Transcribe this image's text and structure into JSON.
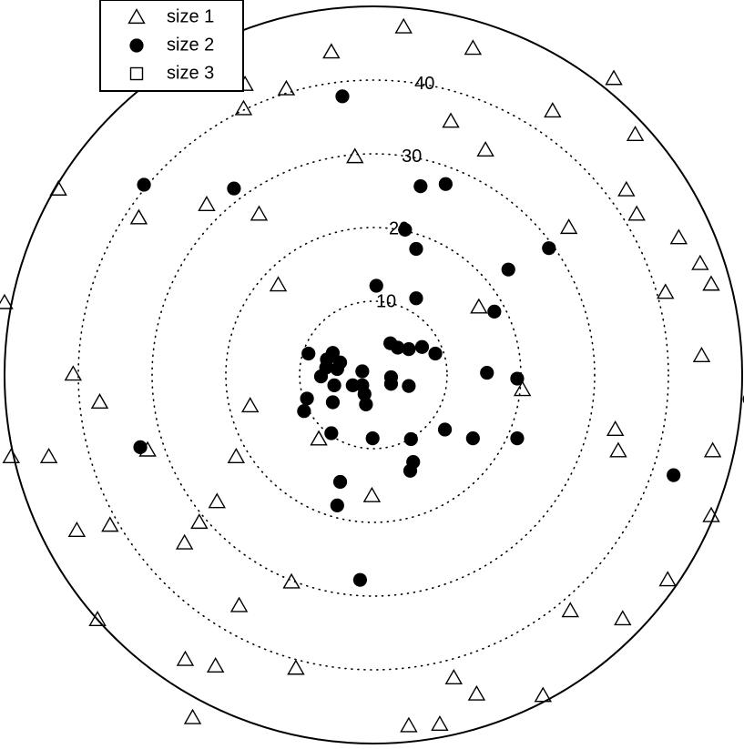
{
  "chart_data": {
    "type": "scatter",
    "coordinate_system": "polar",
    "radial_ticks": [
      {
        "value": 10,
        "label": "10"
      },
      {
        "value": 20,
        "label": "20"
      },
      {
        "value": 30,
        "label": "30"
      },
      {
        "value": 40,
        "label": "40"
      }
    ],
    "rlim": [
      0,
      50
    ],
    "grid": true,
    "legend_position": "top-left",
    "series": [
      {
        "name": "size 1",
        "marker": "open-triangle",
        "points": [
          [
            -5.7,
            43.8
          ],
          [
            4.1,
            47.2
          ],
          [
            13.5,
            44.3
          ],
          [
            -11.8,
            38.8
          ],
          [
            -17.4,
            39.4
          ],
          [
            -17.6,
            36.1
          ],
          [
            10.5,
            34.4
          ],
          [
            15.2,
            30.5
          ],
          [
            24.3,
            35.8
          ],
          [
            -2.5,
            29.6
          ],
          [
            32.6,
            40.2
          ],
          [
            35.5,
            32.6
          ],
          [
            34.3,
            25.1
          ],
          [
            35.7,
            21.8
          ],
          [
            -42.7,
            25.2
          ],
          [
            -31.8,
            21.3
          ],
          [
            -22.6,
            23.1
          ],
          [
            -15.5,
            21.8
          ],
          [
            26.5,
            20.0
          ],
          [
            41.4,
            18.6
          ],
          [
            44.3,
            15.1
          ],
          [
            -12.9,
            12.2
          ],
          [
            39.6,
            11.2
          ],
          [
            14.3,
            9.2
          ],
          [
            45.8,
            12.3
          ],
          [
            -50.0,
            9.8
          ],
          [
            -40.7,
            0.1
          ],
          [
            44.5,
            2.6
          ],
          [
            -37.1,
            -3.7
          ],
          [
            32.8,
            -7.4
          ],
          [
            20.2,
            -2.0
          ],
          [
            -16.7,
            -4.2
          ],
          [
            -7.4,
            -8.7
          ],
          [
            -30.6,
            -10.2
          ],
          [
            33.2,
            -10.3
          ],
          [
            -49.1,
            -11.1
          ],
          [
            -44.0,
            -11.1
          ],
          [
            -18.6,
            -11.1
          ],
          [
            46.0,
            -10.3
          ],
          [
            -0.2,
            -16.4
          ],
          [
            -21.2,
            -17.2
          ],
          [
            -23.6,
            -20.0
          ],
          [
            -40.2,
            -21.1
          ],
          [
            -35.7,
            -20.4
          ],
          [
            -25.6,
            -22.8
          ],
          [
            45.8,
            -19.1
          ],
          [
            -11.1,
            -28.1
          ],
          [
            39.9,
            -27.8
          ],
          [
            -18.2,
            -31.3
          ],
          [
            26.7,
            -32.0
          ],
          [
            -37.4,
            -33.2
          ],
          [
            33.8,
            -33.1
          ],
          [
            -25.5,
            -38.6
          ],
          [
            -21.4,
            -39.5
          ],
          [
            -10.5,
            -39.8
          ],
          [
            10.9,
            -41.1
          ],
          [
            14.0,
            -43.3
          ],
          [
            23.0,
            -43.5
          ],
          [
            -24.5,
            -46.5
          ],
          [
            4.8,
            -47.6
          ],
          [
            9.0,
            -47.4
          ]
        ]
      },
      {
        "name": "size 2",
        "marker": "filled-circle",
        "points": [
          [
            -4.2,
            37.8
          ],
          [
            -31.1,
            25.8
          ],
          [
            -18.9,
            25.3
          ],
          [
            6.4,
            25.6
          ],
          [
            9.8,
            25.9
          ],
          [
            4.3,
            19.7
          ],
          [
            5.8,
            17.1
          ],
          [
            23.8,
            17.2
          ],
          [
            18.3,
            14.3
          ],
          [
            0.4,
            12.1
          ],
          [
            5.8,
            10.4
          ],
          [
            16.4,
            8.6
          ],
          [
            2.3,
            4.3
          ],
          [
            4.8,
            3.5
          ],
          [
            3.3,
            3.7
          ],
          [
            6.6,
            3.8
          ],
          [
            8.4,
            2.9
          ],
          [
            -8.8,
            2.9
          ],
          [
            -5.5,
            3.0
          ],
          [
            -6.3,
            2.1
          ],
          [
            -4.5,
            1.7
          ],
          [
            -6.4,
            1.0
          ],
          [
            -4.9,
            0.8
          ],
          [
            -1.5,
            0.5
          ],
          [
            -7.1,
            -0.2
          ],
          [
            2.4,
            -0.3
          ],
          [
            15.4,
            0.3
          ],
          [
            19.5,
            -0.5
          ],
          [
            -5.3,
            -1.4
          ],
          [
            -2.8,
            -1.4
          ],
          [
            -1.5,
            -1.4
          ],
          [
            2.4,
            -1.2
          ],
          [
            4.8,
            -1.5
          ],
          [
            -1.2,
            -2.6
          ],
          [
            -9.0,
            -3.2
          ],
          [
            -5.5,
            -3.7
          ],
          [
            -1.0,
            -4.0
          ],
          [
            -9.4,
            -4.9
          ],
          [
            51.0,
            -3.3
          ],
          [
            9.7,
            -7.4
          ],
          [
            -5.7,
            -7.9
          ],
          [
            -0.1,
            -8.6
          ],
          [
            5.1,
            -8.7
          ],
          [
            13.5,
            -8.6
          ],
          [
            19.5,
            -8.6
          ],
          [
            -31.6,
            -9.8
          ],
          [
            5.4,
            -11.8
          ],
          [
            5.0,
            -13.0
          ],
          [
            -4.5,
            -14.5
          ],
          [
            40.7,
            -13.6
          ],
          [
            -4.9,
            -17.7
          ],
          [
            -1.8,
            -27.8
          ]
        ]
      },
      {
        "name": "size 3",
        "marker": "open-square",
        "points": []
      }
    ]
  }
}
